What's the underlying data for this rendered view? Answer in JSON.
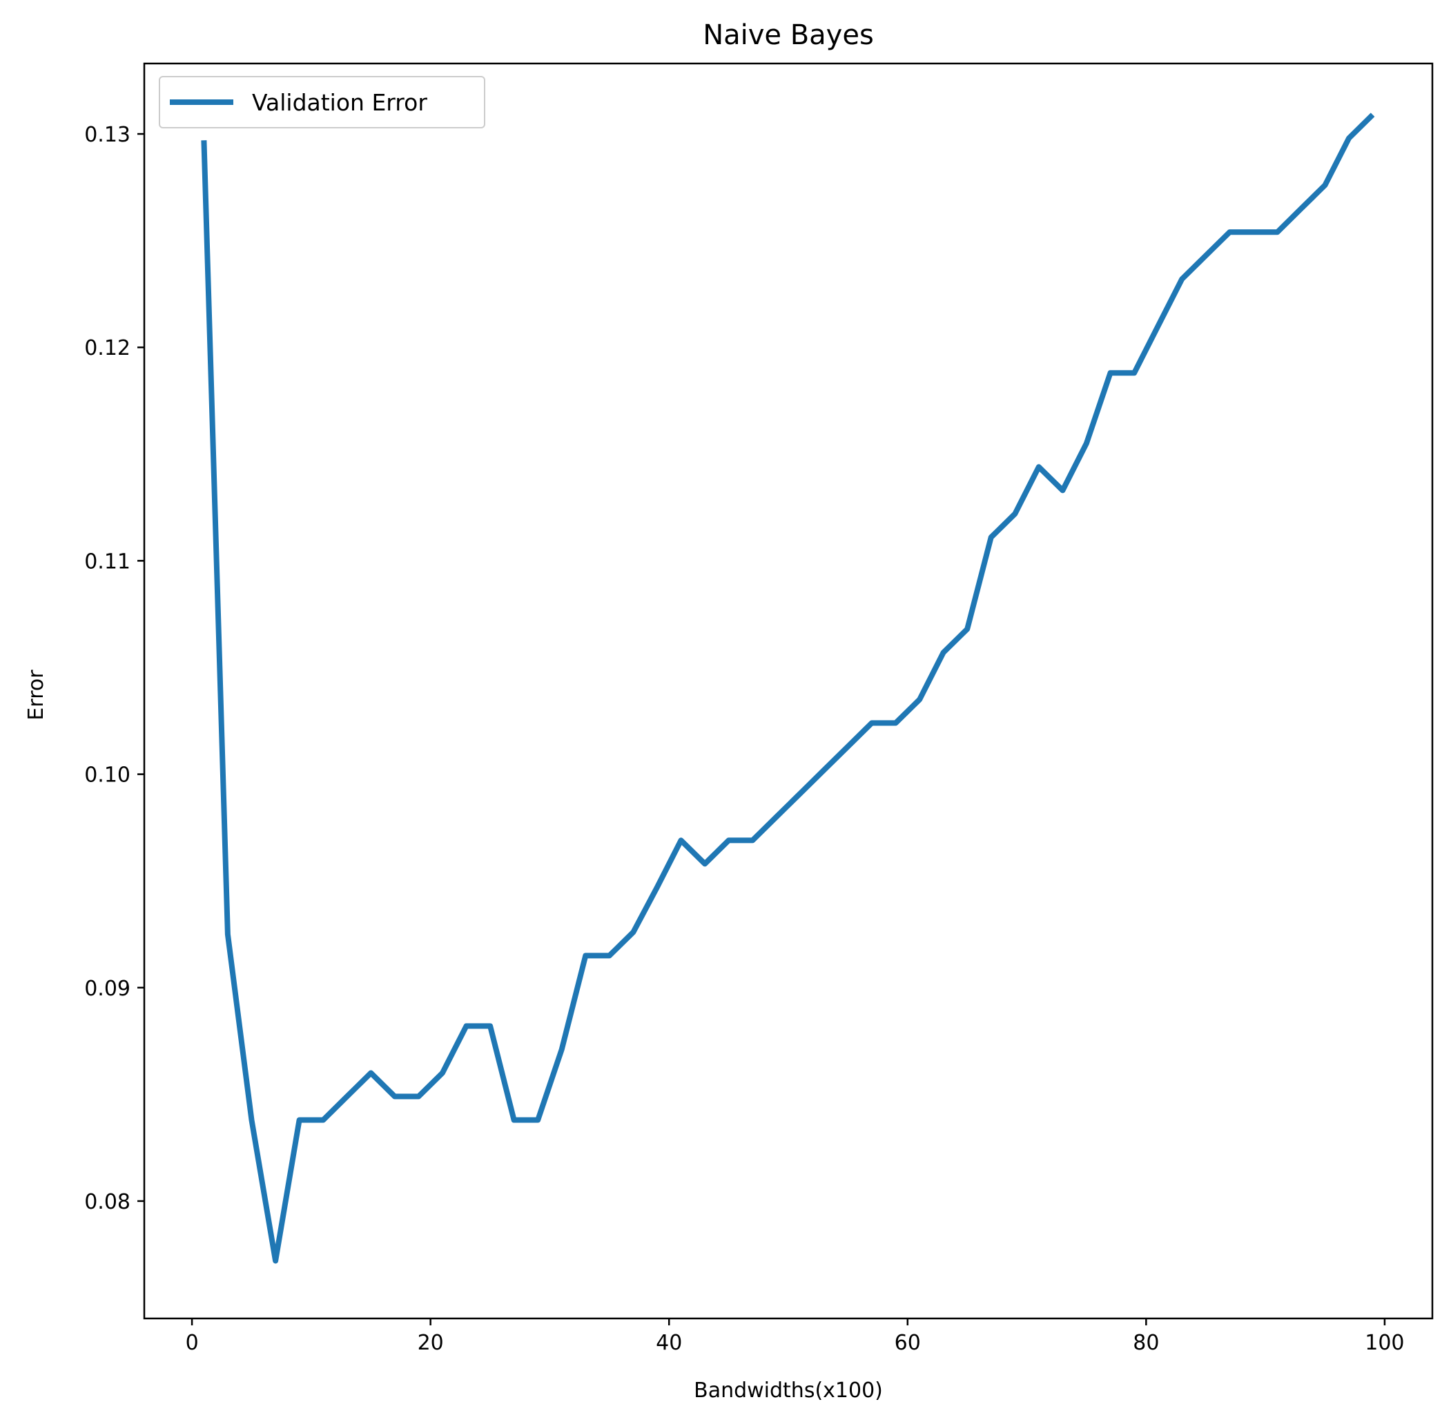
{
  "chart_data": {
    "type": "line",
    "title": "Naive Bayes",
    "xlabel": "Bandwidths(x100)",
    "ylabel": "Error",
    "xlim": [
      -4,
      104
    ],
    "ylim": [
      0.0745,
      0.1333
    ],
    "xticks": [
      0,
      20,
      40,
      60,
      80,
      100
    ],
    "yticks": [
      0.08,
      0.09,
      0.1,
      0.11,
      0.12,
      0.13
    ],
    "ytick_labels": [
      "0.08",
      "0.09",
      "0.10",
      "0.11",
      "0.12",
      "0.13"
    ],
    "grid": false,
    "legend_position": "top-left",
    "series": [
      {
        "name": "Validation Error",
        "color": "#1f77b4",
        "x": [
          1,
          3,
          5,
          7,
          9,
          11,
          13,
          15,
          17,
          19,
          21,
          23,
          25,
          27,
          29,
          31,
          33,
          35,
          37,
          39,
          41,
          43,
          45,
          47,
          49,
          51,
          53,
          55,
          57,
          59,
          61,
          63,
          65,
          67,
          69,
          71,
          73,
          75,
          77,
          79,
          81,
          83,
          85,
          87,
          89,
          91,
          93,
          95,
          97,
          99
        ],
        "y": [
          0.1297,
          0.0925,
          0.0838,
          0.0772,
          0.0838,
          0.0838,
          0.0849,
          0.086,
          0.0849,
          0.0849,
          0.086,
          0.0882,
          0.0882,
          0.0838,
          0.0838,
          0.0871,
          0.0915,
          0.0915,
          0.0926,
          0.0947,
          0.0969,
          0.0958,
          0.0969,
          0.0969,
          0.098,
          0.0991,
          0.1002,
          0.1013,
          0.1024,
          0.1024,
          0.1035,
          0.1057,
          0.1068,
          0.1111,
          0.1122,
          0.1144,
          0.1133,
          0.1155,
          0.1188,
          0.1188,
          0.121,
          0.1232,
          0.1243,
          0.1254,
          0.1254,
          0.1254,
          0.1265,
          0.1276,
          0.1298,
          0.1309
        ]
      }
    ]
  }
}
